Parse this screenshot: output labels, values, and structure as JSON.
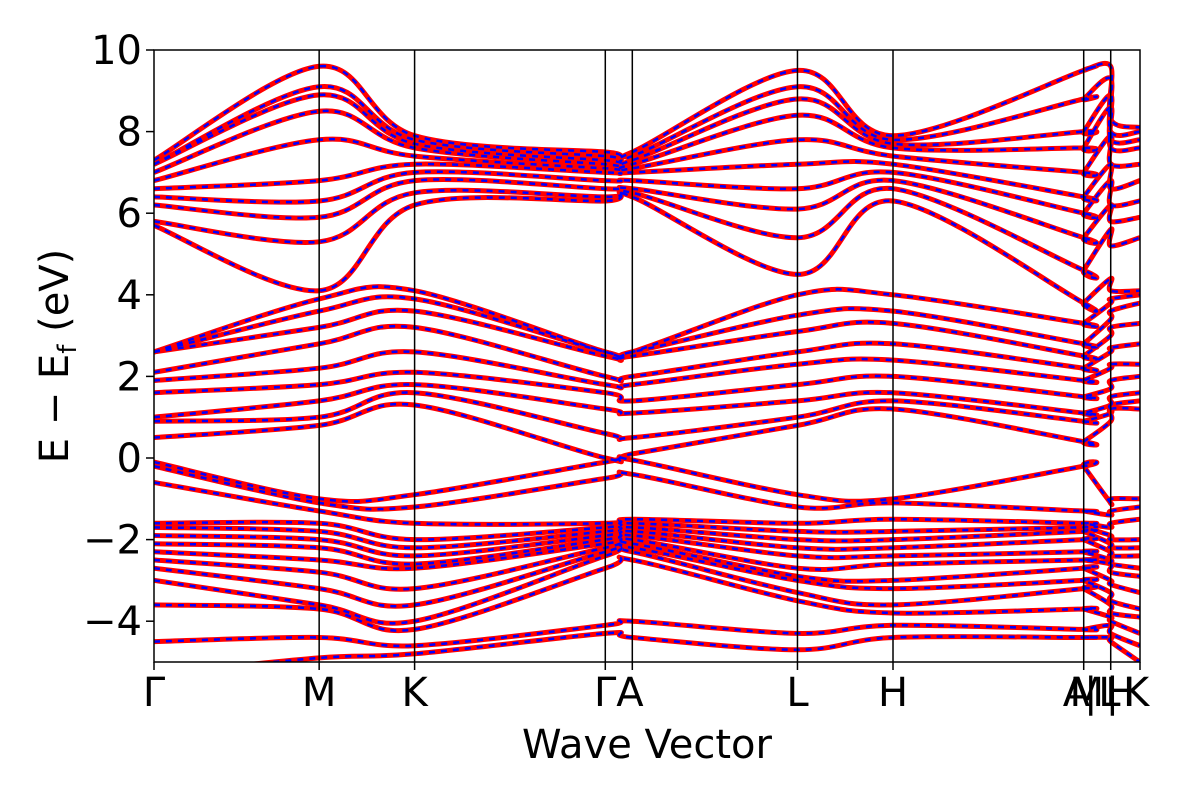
{
  "chart_data": {
    "type": "line",
    "title": "",
    "xlabel": "Wave Vector",
    "ylabel_main": "E − E",
    "ylabel_sub": "f",
    "ylabel_unit": " (eV)",
    "ylim": [
      -5,
      10
    ],
    "yticks": [
      -4,
      -2,
      0,
      2,
      4,
      6,
      8,
      10
    ],
    "ytick_labels": [
      "−4",
      "−2",
      "0",
      "2",
      "4",
      "6",
      "8",
      "10"
    ],
    "x_range": [
      0,
      1
    ],
    "kpoints": [
      {
        "label": "Γ",
        "x": 0.0
      },
      {
        "label": "M",
        "x": 0.1675
      },
      {
        "label": "K",
        "x": 0.2643
      },
      {
        "label": "Γ",
        "x": 0.4577
      },
      {
        "label": "A",
        "x": 0.4851
      },
      {
        "label": "L",
        "x": 0.6526
      },
      {
        "label": "H",
        "x": 0.7495
      },
      {
        "label": "A",
        "x": 0.9429
      },
      {
        "label": "M",
        "x": 0.9429
      },
      {
        "label": "L",
        "x": 0.9703
      },
      {
        "label": "H",
        "x": 0.9703
      },
      {
        "label": "K",
        "x": 1.0
      }
    ],
    "kpoint_ticks": [
      {
        "text": "Γ",
        "x": 0.0
      },
      {
        "text": "M",
        "x": 0.1675
      },
      {
        "text": "K",
        "x": 0.2643
      },
      {
        "text": "ΓA",
        "x": 0.4714
      },
      {
        "text": "L",
        "x": 0.6526
      },
      {
        "text": "H",
        "x": 0.7495
      },
      {
        "text": "A",
        "x": 0.9355
      },
      {
        "text": "M",
        "x": 0.946
      },
      {
        "text": "|",
        "x": 0.95
      },
      {
        "text": "L",
        "x": 0.969
      },
      {
        "text": "|",
        "x": 0.972
      },
      {
        "text": "H",
        "x": 0.98
      },
      {
        "text": "K",
        "x": 0.996
      }
    ],
    "series": [
      {
        "name": "",
        "color": "#ff0000",
        "style": "solid"
      },
      {
        "name": "",
        "color": "#0000ff",
        "style": "dashed"
      }
    ],
    "bands": [
      {
        "y": [
          -5.3,
          -4.9,
          -4.8,
          -4.3,
          -4.4,
          -4.7,
          -4.4,
          -4.4,
          -4.4,
          -4.4,
          -4.5,
          -5.0
        ]
      },
      {
        "y": [
          -4.5,
          -4.4,
          -4.6,
          -4.1,
          -4.0,
          -4.3,
          -4.1,
          -4.2,
          -4.2,
          -4.1,
          -4.3,
          -4.6
        ]
      },
      {
        "y": [
          -3.6,
          -3.7,
          -4.2,
          -2.7,
          -2.5,
          -3.5,
          -3.8,
          -3.7,
          -3.7,
          -3.9,
          -4.0,
          -4.3
        ]
      },
      {
        "y": [
          -3.0,
          -3.6,
          -4.0,
          -2.4,
          -2.3,
          -3.3,
          -3.6,
          -3.2,
          -3.2,
          -3.6,
          -3.8,
          -3.9
        ]
      },
      {
        "y": [
          -2.7,
          -3.2,
          -3.6,
          -2.3,
          -2.2,
          -3.0,
          -3.2,
          -3.0,
          -3.0,
          -3.3,
          -3.5,
          -3.7
        ]
      },
      {
        "y": [
          -2.5,
          -2.8,
          -3.2,
          -2.2,
          -2.1,
          -2.9,
          -3.0,
          -2.7,
          -2.7,
          -3.0,
          -3.1,
          -3.3
        ]
      },
      {
        "y": [
          -2.3,
          -2.5,
          -2.7,
          -2.1,
          -2.0,
          -2.7,
          -2.6,
          -2.5,
          -2.5,
          -2.6,
          -2.8,
          -2.9
        ]
      },
      {
        "y": [
          -2.1,
          -2.2,
          -2.6,
          -2.0,
          -1.9,
          -2.4,
          -2.4,
          -2.3,
          -2.3,
          -2.5,
          -2.6,
          -2.7
        ]
      },
      {
        "y": [
          -1.9,
          -2.0,
          -2.4,
          -1.9,
          -1.8,
          -2.2,
          -2.2,
          -2.0,
          -2.0,
          -2.3,
          -2.4,
          -2.4
        ]
      },
      {
        "y": [
          -1.7,
          -1.8,
          -2.2,
          -1.8,
          -1.7,
          -2.0,
          -2.0,
          -1.8,
          -1.8,
          -2.1,
          -2.2,
          -2.2
        ]
      },
      {
        "y": [
          -1.6,
          -1.6,
          -2.0,
          -1.7,
          -1.6,
          -1.8,
          -1.8,
          -1.7,
          -1.7,
          -1.9,
          -2.0,
          -2.0
        ]
      },
      {
        "y": [
          -0.6,
          -1.3,
          -1.6,
          -1.6,
          -1.5,
          -1.6,
          -1.5,
          -1.6,
          -1.6,
          -1.7,
          -1.6,
          -1.5
        ]
      },
      {
        "y": [
          -0.2,
          -1.1,
          -1.2,
          -0.5,
          -0.4,
          -1.2,
          -1.1,
          -1.3,
          -1.3,
          -1.4,
          -1.3,
          -1.2
        ]
      },
      {
        "y": [
          -0.1,
          -1.0,
          -0.9,
          -0.1,
          -0.05,
          -0.9,
          -1.0,
          -0.2,
          -0.2,
          -1.1,
          -1.0,
          -1.0
        ]
      },
      {
        "y": [
          0.5,
          0.8,
          1.3,
          0.0,
          0.1,
          0.8,
          1.2,
          0.4,
          0.4,
          0.9,
          1.2,
          1.2
        ]
      },
      {
        "y": [
          0.9,
          1.0,
          1.6,
          0.6,
          0.5,
          1.0,
          1.4,
          0.9,
          0.9,
          1.1,
          1.3,
          1.4
        ]
      },
      {
        "y": [
          1.0,
          1.4,
          1.8,
          1.2,
          1.1,
          1.4,
          1.6,
          1.1,
          1.1,
          1.3,
          1.5,
          1.6
        ]
      },
      {
        "y": [
          1.6,
          1.8,
          2.1,
          1.6,
          1.4,
          1.8,
          2.0,
          1.5,
          1.5,
          1.7,
          1.9,
          2.0
        ]
      },
      {
        "y": [
          1.9,
          2.2,
          2.6,
          1.8,
          1.8,
          2.3,
          2.4,
          1.9,
          1.9,
          2.2,
          2.3,
          2.3
        ]
      },
      {
        "y": [
          2.1,
          2.8,
          3.2,
          2.0,
          2.0,
          2.6,
          2.8,
          2.2,
          2.2,
          2.6,
          2.7,
          2.8
        ]
      },
      {
        "y": [
          2.6,
          3.2,
          3.6,
          2.5,
          2.5,
          3.1,
          3.3,
          2.5,
          2.5,
          3.0,
          3.2,
          3.3
        ]
      },
      {
        "y": [
          2.6,
          3.6,
          3.9,
          2.6,
          2.6,
          3.5,
          3.6,
          2.8,
          2.8,
          3.4,
          3.6,
          3.8
        ]
      },
      {
        "y": [
          2.6,
          3.9,
          4.1,
          2.6,
          2.6,
          4.0,
          4.0,
          3.3,
          3.3,
          3.8,
          3.9,
          4.0
        ]
      },
      {
        "y": [
          5.7,
          4.1,
          6.2,
          6.3,
          6.4,
          4.5,
          6.3,
          3.8,
          3.8,
          4.4,
          4.1,
          4.1
        ]
      },
      {
        "y": [
          5.8,
          5.3,
          6.5,
          6.4,
          6.5,
          5.4,
          6.6,
          4.6,
          4.6,
          5.6,
          5.2,
          5.4
        ]
      },
      {
        "y": [
          6.2,
          5.9,
          6.8,
          6.6,
          6.6,
          6.1,
          6.8,
          5.4,
          5.4,
          6.2,
          5.8,
          5.9
        ]
      },
      {
        "y": [
          6.4,
          6.3,
          7.0,
          6.8,
          6.8,
          6.6,
          7.0,
          6.0,
          6.0,
          6.8,
          6.2,
          6.3
        ]
      },
      {
        "y": [
          6.6,
          6.8,
          7.2,
          7.0,
          7.0,
          7.2,
          7.2,
          6.4,
          6.4,
          7.2,
          6.6,
          6.8
        ]
      },
      {
        "y": [
          6.8,
          7.8,
          7.4,
          7.1,
          7.1,
          7.8,
          7.4,
          7.0,
          7.0,
          7.9,
          7.2,
          7.2
        ]
      },
      {
        "y": [
          7.0,
          8.5,
          7.6,
          7.2,
          7.2,
          8.4,
          7.6,
          7.6,
          7.6,
          8.6,
          7.6,
          7.6
        ]
      },
      {
        "y": [
          7.2,
          8.9,
          7.7,
          7.3,
          7.3,
          8.8,
          7.7,
          8.0,
          8.0,
          8.9,
          7.8,
          7.8
        ]
      },
      {
        "y": [
          7.2,
          9.1,
          7.8,
          7.4,
          7.4,
          9.1,
          7.8,
          8.8,
          8.8,
          9.3,
          8.0,
          8.0
        ]
      },
      {
        "y": [
          7.3,
          9.6,
          7.9,
          7.5,
          7.5,
          9.5,
          7.9,
          9.5,
          9.5,
          9.6,
          8.3,
          8.1
        ]
      }
    ]
  }
}
